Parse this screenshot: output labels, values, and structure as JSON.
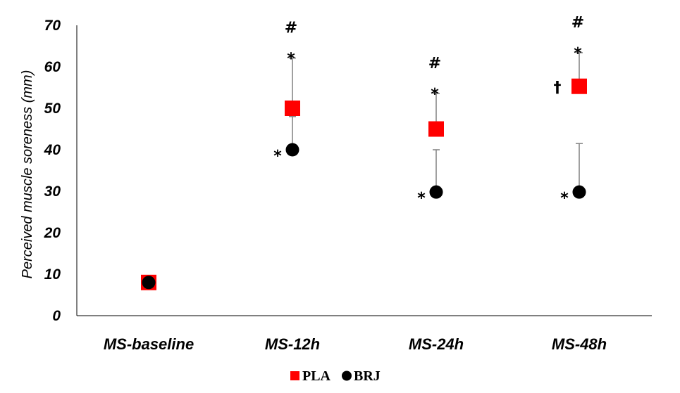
{
  "chart_data": {
    "type": "scatter",
    "title": "",
    "xlabel": "",
    "ylabel": "Perceived muscle soreness (mm)",
    "ylim": [
      0,
      70
    ],
    "yticks": [
      "0",
      "10",
      "20",
      "30",
      "40",
      "50",
      "60",
      "70"
    ],
    "categories": [
      "MS-baseline",
      "MS-12h",
      "MS-24h",
      "MS-48h"
    ],
    "grid": false,
    "legend_position": "bottom-center",
    "series": [
      {
        "name": "PLA",
        "marker": "square",
        "color": "#ff0000",
        "values": [
          8,
          50,
          45,
          55.3
        ],
        "error_upper": [
          null,
          62.1,
          53.6,
          63.4
        ]
      },
      {
        "name": "BRJ",
        "marker": "circle",
        "color": "#000000",
        "values": [
          8,
          40,
          29.8,
          29.8
        ],
        "error_upper": [
          null,
          48,
          40,
          41.5
        ]
      }
    ],
    "annotations": [
      {
        "category": "MS-12h",
        "series": "PLA",
        "symbols": [
          "#",
          "*"
        ]
      },
      {
        "category": "MS-24h",
        "series": "PLA",
        "symbols": [
          "#",
          "*"
        ]
      },
      {
        "category": "MS-48h",
        "series": "PLA",
        "symbols": [
          "#",
          "*",
          "†"
        ]
      },
      {
        "category": "MS-12h",
        "series": "BRJ",
        "symbols": [
          "*"
        ]
      },
      {
        "category": "MS-24h",
        "series": "BRJ",
        "symbols": [
          "*"
        ]
      },
      {
        "category": "MS-48h",
        "series": "BRJ",
        "symbols": [
          "*"
        ]
      }
    ]
  }
}
